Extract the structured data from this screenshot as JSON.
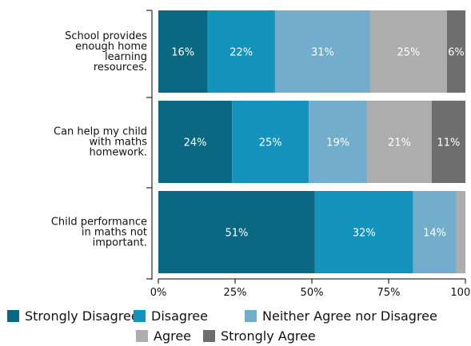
{
  "chart_data": {
    "type": "bar",
    "orientation": "horizontal",
    "stacked": true,
    "categories": [
      "School provides\nenough home\nlearning\nresources.",
      "Can help my child\nwith maths\nhomework.",
      "Child performance\nin maths not\nimportant."
    ],
    "series": [
      {
        "name": "Strongly Disagree",
        "color": "#0b6883",
        "values": [
          16,
          24,
          51
        ],
        "labels": [
          "16%",
          "24%",
          "51%"
        ]
      },
      {
        "name": "Disagree",
        "color": "#1493bc",
        "values": [
          22,
          25,
          32
        ],
        "labels": [
          "22%",
          "25%",
          "32%"
        ]
      },
      {
        "name": "Neither Agree nor Disagree",
        "color": "#72adcc",
        "values": [
          31,
          19,
          14
        ],
        "labels": [
          "31%",
          "19%",
          "14%"
        ]
      },
      {
        "name": "Agree",
        "color": "#adadad",
        "values": [
          25,
          21,
          3
        ],
        "labels": [
          "25%",
          "21%",
          ""
        ]
      },
      {
        "name": "Strongly Agree",
        "color": "#6e6e6e",
        "values": [
          6,
          11,
          0
        ],
        "labels": [
          "6%",
          "11%",
          ""
        ]
      }
    ],
    "xlim": [
      0,
      100
    ],
    "xticks": [
      "0%",
      "25%",
      "50%",
      "75%",
      "100%"
    ],
    "legend_position": "bottom",
    "grid": false
  }
}
